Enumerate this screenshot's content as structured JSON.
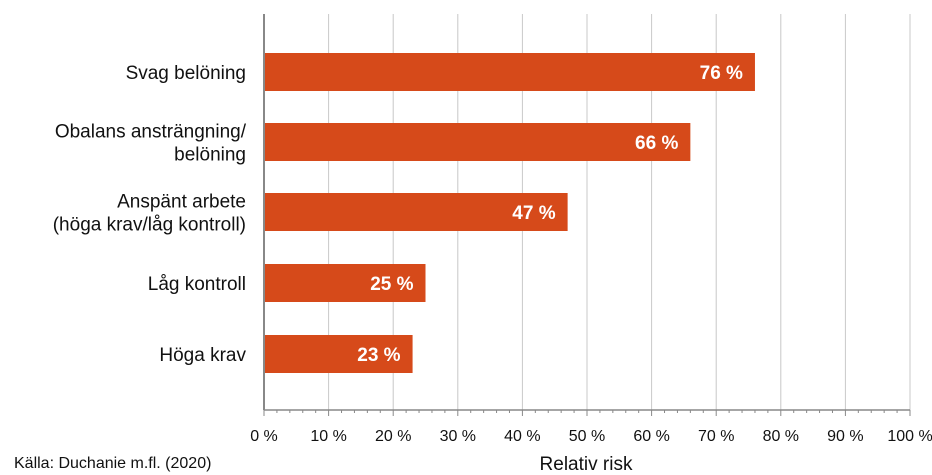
{
  "chart_data": {
    "type": "bar",
    "orientation": "horizontal",
    "categories": [
      [
        "Svag belöning"
      ],
      [
        "Obalans ansträngning/",
        "belöning"
      ],
      [
        "Anspänt arbete",
        "(höga krav/låg kontroll)"
      ],
      [
        "Låg kontroll"
      ],
      [
        "Höga krav"
      ]
    ],
    "values": [
      76,
      66,
      47,
      25,
      23
    ],
    "data_labels": [
      "76 %",
      "66 %",
      "47 %",
      "25 %",
      "23 %"
    ],
    "xlabel": "Relativ risk",
    "xlim": [
      0,
      100
    ],
    "xticks": [
      0,
      10,
      20,
      30,
      40,
      50,
      60,
      70,
      80,
      90,
      100
    ],
    "xtick_labels": [
      "0 %",
      "10 %",
      "20 %",
      "30 %",
      "40 %",
      "50 %",
      "60 %",
      "70 %",
      "80 %",
      "90 %",
      "100 %"
    ],
    "grid": "vertical",
    "bar_color": "#d64a1a"
  },
  "source": "Källa: Duchanie m.fl. (2020)"
}
